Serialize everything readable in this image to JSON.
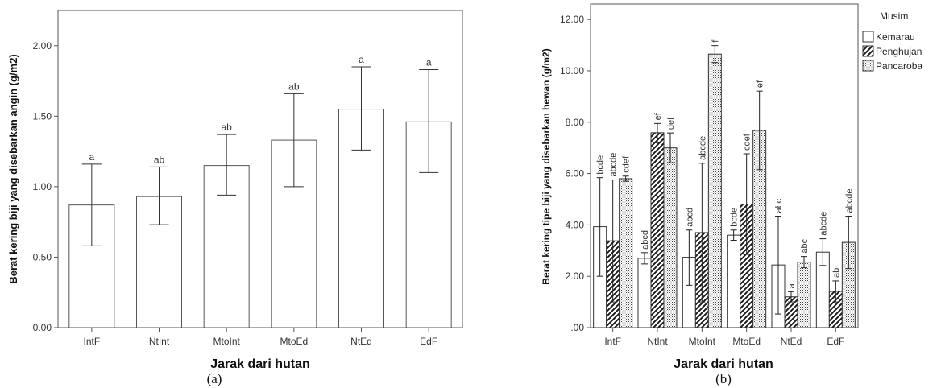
{
  "figure": {
    "caption_a": "(a)",
    "caption_b": "(b)"
  },
  "chart_data": [
    {
      "type": "bar",
      "categories": [
        "IntF",
        "NtInt",
        "MtoInt",
        "MtoEd",
        "NtEd",
        "EdF"
      ],
      "values": [
        0.87,
        0.93,
        1.15,
        1.33,
        1.55,
        1.46
      ],
      "error_low": [
        0.58,
        0.73,
        0.94,
        1.0,
        1.26,
        1.1
      ],
      "error_high": [
        1.16,
        1.14,
        1.37,
        1.66,
        1.85,
        1.83
      ],
      "letters": [
        "a",
        "ab",
        "ab",
        "ab",
        "a",
        "a"
      ],
      "title": "",
      "xlabel": "Jarak dari hutan",
      "ylabel": "Berat kering biji yang disebarkan angin (g/m2)",
      "ylim": [
        0,
        2.25
      ],
      "yticks": [
        0,
        0.5,
        1.0,
        1.5,
        2.0
      ],
      "ytick_labels": [
        "0.00",
        "0.50",
        "1.00",
        "1.50",
        "2.00"
      ],
      "grid": false,
      "bar_color": "#ffffff",
      "edge_color": "#555555"
    },
    {
      "type": "bar",
      "categories": [
        "IntF",
        "NtInt",
        "MtoInt",
        "MtoEd",
        "NtEd",
        "EdF"
      ],
      "series": [
        {
          "name": "Kemarau",
          "pattern": "solid-white",
          "values": [
            3.93,
            2.7,
            2.74,
            3.6,
            2.44,
            2.94
          ],
          "error_low": [
            2.0,
            2.48,
            1.65,
            3.4,
            0.53,
            2.42
          ],
          "error_high": [
            5.84,
            2.92,
            3.8,
            3.8,
            4.34,
            3.46
          ],
          "letters": [
            "bcde",
            "abcd",
            "abcd",
            "bcde",
            "abc",
            "abcde"
          ]
        },
        {
          "name": "Penghujan",
          "pattern": "diagonal-hatch",
          "values": [
            3.38,
            7.59,
            3.7,
            4.81,
            1.2,
            1.41
          ],
          "error_low": [
            1.0,
            7.2,
            1.0,
            2.85,
            1.0,
            1.0
          ],
          "error_high": [
            5.75,
            7.95,
            6.4,
            6.77,
            1.4,
            1.82
          ],
          "letters": [
            "abcde",
            "ef",
            "abcde",
            "cdef",
            "a",
            "ab"
          ]
        },
        {
          "name": "Pancaroba",
          "pattern": "dotted",
          "values": [
            5.8,
            7.0,
            10.65,
            7.68,
            2.55,
            3.32
          ],
          "error_low": [
            5.7,
            6.42,
            10.32,
            6.15,
            2.33,
            2.3
          ],
          "error_high": [
            5.9,
            7.58,
            10.98,
            9.21,
            2.77,
            4.34
          ],
          "letters": [
            "cdef",
            "def",
            "f",
            "ef",
            "abc",
            "abcde"
          ]
        }
      ],
      "title": "",
      "xlabel": "Jarak dari hutan",
      "ylabel": "Berat kering tipe biji yang disebarkan hewan (g/m2)",
      "ylim": [
        0,
        12.6
      ],
      "yticks": [
        0,
        2,
        4,
        6,
        8,
        10,
        12
      ],
      "ytick_labels": [
        ".00",
        "2.00",
        "4.00",
        "6.00",
        "8.00",
        "10.00",
        "12.00"
      ],
      "legend": {
        "title": "Musim",
        "placement": "right"
      },
      "grid": false
    }
  ]
}
